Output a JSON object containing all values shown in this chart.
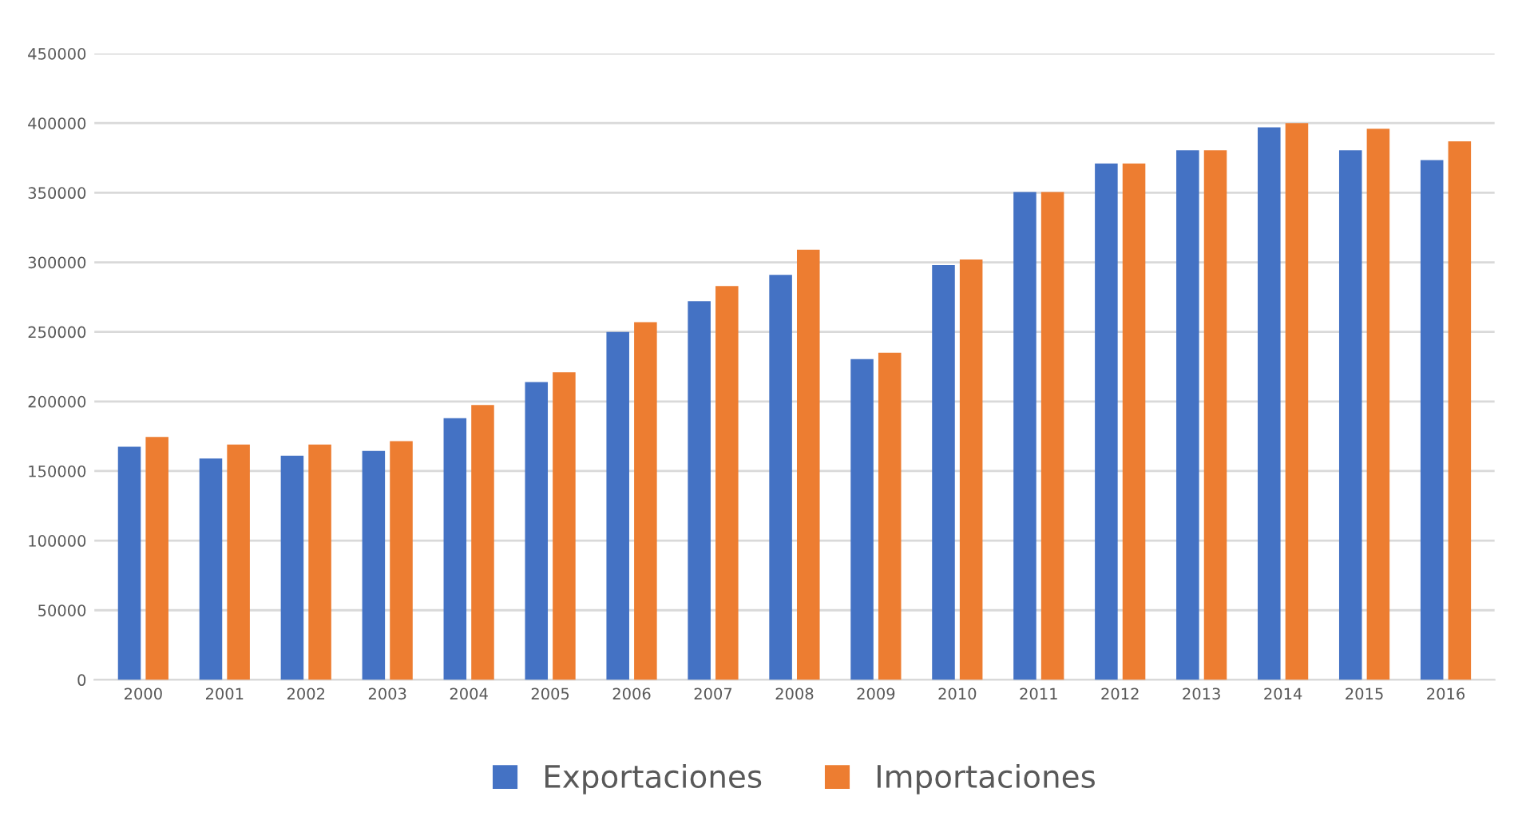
{
  "chart_data": {
    "type": "bar",
    "categories": [
      "2000",
      "2001",
      "2002",
      "2003",
      "2004",
      "2005",
      "2006",
      "2007",
      "2008",
      "2009",
      "2010",
      "2011",
      "2012",
      "2013",
      "2014",
      "2015",
      "2016"
    ],
    "series": [
      {
        "name": "Exportaciones",
        "color": "#4472c4",
        "values": [
          167500,
          159000,
          161000,
          164500,
          188000,
          214000,
          250000,
          272000,
          291000,
          230500,
          298000,
          350500,
          371000,
          380500,
          397000,
          380500,
          373500
        ]
      },
      {
        "name": "Importaciones",
        "color": "#ed7d31",
        "values": [
          174500,
          169000,
          169000,
          171500,
          197500,
          221000,
          257000,
          283000,
          309000,
          235000,
          302000,
          350500,
          371000,
          380500,
          400000,
          396000,
          387000
        ]
      }
    ],
    "ylim": [
      0,
      450000
    ],
    "yticks": [
      0,
      50000,
      100000,
      150000,
      200000,
      250000,
      300000,
      350000,
      400000,
      450000
    ],
    "grid": "y",
    "legend": "bottom"
  }
}
